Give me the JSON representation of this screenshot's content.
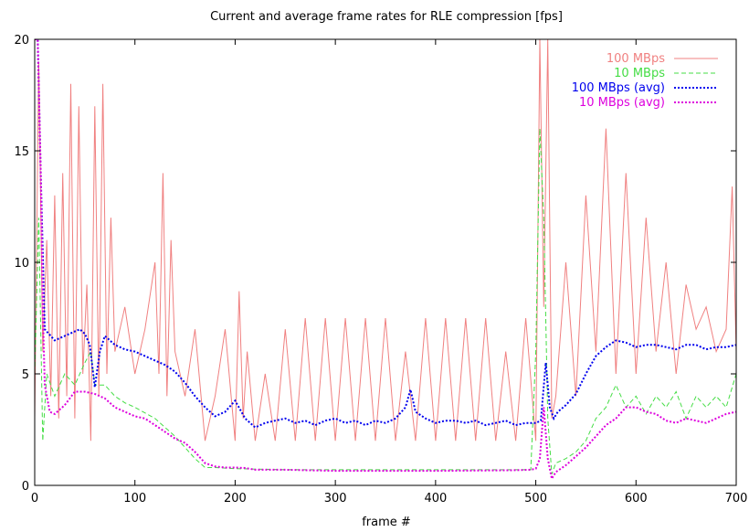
{
  "chart_data": {
    "type": "line",
    "title": "Current and average frame rates for RLE compression [fps]",
    "xlabel": "frame #",
    "ylabel": "",
    "xlim": [
      0,
      700
    ],
    "ylim": [
      0,
      20
    ],
    "xticks": [
      0,
      100,
      200,
      300,
      400,
      500,
      600,
      700
    ],
    "yticks": [
      0,
      5,
      10,
      15,
      20
    ],
    "grid": false,
    "legend_position": "top-right",
    "series": [
      {
        "name": "100 MBps",
        "color": "#f08080",
        "style": "solid",
        "x": [
          0,
          4,
          8,
          12,
          16,
          20,
          24,
          28,
          32,
          36,
          40,
          44,
          48,
          52,
          56,
          60,
          64,
          68,
          72,
          76,
          80,
          90,
          100,
          110,
          120,
          124,
          128,
          132,
          136,
          140,
          150,
          160,
          170,
          180,
          190,
          200,
          204,
          208,
          212,
          220,
          230,
          240,
          250,
          260,
          270,
          280,
          290,
          300,
          310,
          320,
          330,
          340,
          350,
          360,
          370,
          380,
          390,
          400,
          410,
          420,
          430,
          440,
          450,
          460,
          470,
          480,
          490,
          500,
          504,
          508,
          512,
          516,
          520,
          530,
          540,
          550,
          560,
          570,
          580,
          590,
          600,
          610,
          620,
          630,
          640,
          650,
          660,
          670,
          680,
          690,
          696,
          700
        ],
        "values": [
          3,
          19,
          6,
          11,
          4,
          13,
          3,
          14,
          4,
          18,
          3,
          17,
          5,
          9,
          2,
          17,
          4,
          18,
          5,
          12,
          6,
          8,
          5,
          7,
          10,
          5,
          14,
          4,
          11,
          6,
          4,
          7,
          2,
          4,
          7,
          2,
          8.7,
          3,
          6,
          2,
          5,
          2,
          7,
          2,
          7.5,
          2,
          7.5,
          2,
          7.5,
          2,
          7.5,
          2,
          7.5,
          2,
          6,
          2,
          7.5,
          2,
          7.5,
          2,
          7.5,
          2,
          7.5,
          2,
          6,
          2,
          7.5,
          2,
          20,
          8,
          20,
          3,
          4,
          10,
          4,
          13,
          6,
          16,
          5,
          14,
          5,
          12,
          6,
          10,
          5,
          9,
          7,
          8,
          6,
          7,
          13.4,
          6
        ]
      },
      {
        "name": "10 MBps",
        "color": "#44dd44",
        "style": "dashed",
        "x": [
          0,
          4,
          8,
          12,
          20,
          30,
          40,
          50,
          56,
          60,
          70,
          80,
          90,
          100,
          120,
          140,
          160,
          170,
          180,
          200,
          250,
          300,
          350,
          400,
          450,
          480,
          495,
          500,
          504,
          508,
          512,
          516,
          520,
          530,
          540,
          550,
          560,
          570,
          580,
          590,
          600,
          610,
          620,
          630,
          640,
          650,
          660,
          670,
          680,
          690,
          700
        ],
        "values": [
          5,
          12,
          2,
          5,
          4,
          5,
          4.5,
          5.5,
          6,
          4.5,
          4.5,
          4,
          3.7,
          3.5,
          3,
          2.2,
          1.2,
          0.8,
          0.8,
          0.75,
          0.7,
          0.7,
          0.7,
          0.7,
          0.7,
          0.7,
          0.7,
          6,
          16,
          12,
          3,
          0.5,
          1,
          1.2,
          1.5,
          2,
          3,
          3.5,
          4.5,
          3.5,
          4,
          3.2,
          4,
          3.5,
          4.2,
          3,
          4,
          3.5,
          4,
          3.5,
          5
        ]
      },
      {
        "name": "100 MBps (avg)",
        "color": "#0000ee",
        "style": "dotted",
        "x": [
          0,
          3,
          6,
          10,
          20,
          30,
          40,
          45,
          50,
          55,
          60,
          65,
          70,
          80,
          90,
          100,
          110,
          120,
          130,
          140,
          150,
          160,
          170,
          180,
          190,
          200,
          210,
          220,
          230,
          240,
          250,
          260,
          270,
          280,
          290,
          300,
          310,
          320,
          330,
          340,
          350,
          360,
          370,
          375,
          380,
          390,
          400,
          410,
          420,
          430,
          440,
          450,
          460,
          470,
          480,
          490,
          500,
          505,
          510,
          514,
          518,
          522,
          530,
          540,
          550,
          560,
          570,
          580,
          590,
          600,
          610,
          620,
          630,
          640,
          650,
          660,
          670,
          680,
          690,
          700
        ],
        "values": [
          20,
          20,
          14,
          7,
          6.5,
          6.7,
          6.9,
          7,
          6.8,
          6.3,
          4.4,
          6,
          6.7,
          6.3,
          6.1,
          6,
          5.8,
          5.6,
          5.4,
          5.1,
          4.6,
          4,
          3.5,
          3.1,
          3.3,
          3.8,
          3,
          2.6,
          2.8,
          2.9,
          3,
          2.8,
          2.9,
          2.7,
          2.9,
          3,
          2.8,
          2.9,
          2.7,
          2.9,
          2.8,
          3,
          3.5,
          4.3,
          3.3,
          3,
          2.8,
          2.9,
          2.9,
          2.8,
          2.9,
          2.7,
          2.8,
          2.9,
          2.7,
          2.8,
          2.8,
          2.9,
          5.5,
          3.5,
          3,
          3.3,
          3.6,
          4.1,
          5,
          5.8,
          6.2,
          6.5,
          6.4,
          6.2,
          6.3,
          6.3,
          6.2,
          6.1,
          6.3,
          6.3,
          6.1,
          6.2,
          6.2,
          6.3
        ]
      },
      {
        "name": "10 MBps (avg)",
        "color": "#dd00dd",
        "style": "dotted",
        "x": [
          0,
          3,
          6,
          8,
          10,
          15,
          20,
          30,
          40,
          50,
          60,
          70,
          80,
          90,
          100,
          110,
          120,
          130,
          140,
          150,
          160,
          170,
          180,
          190,
          200,
          210,
          220,
          230,
          250,
          270,
          300,
          350,
          400,
          450,
          480,
          495,
          500,
          504,
          508,
          512,
          516,
          520,
          530,
          540,
          550,
          560,
          570,
          580,
          590,
          600,
          610,
          620,
          630,
          640,
          650,
          660,
          670,
          680,
          690,
          700
        ],
        "values": [
          20,
          20,
          14,
          8,
          4.5,
          3.3,
          3.2,
          3.6,
          4.2,
          4.2,
          4.1,
          3.9,
          3.5,
          3.3,
          3.1,
          3,
          2.7,
          2.4,
          2.1,
          1.9,
          1.5,
          1,
          0.85,
          0.8,
          0.8,
          0.78,
          0.7,
          0.7,
          0.7,
          0.68,
          0.65,
          0.65,
          0.65,
          0.67,
          0.68,
          0.7,
          0.75,
          1.2,
          3.5,
          1.2,
          0.3,
          0.6,
          0.9,
          1.3,
          1.7,
          2.2,
          2.7,
          3,
          3.5,
          3.5,
          3.3,
          3.2,
          2.9,
          2.8,
          3,
          2.9,
          2.8,
          3,
          3.2,
          3.3
        ]
      }
    ]
  }
}
